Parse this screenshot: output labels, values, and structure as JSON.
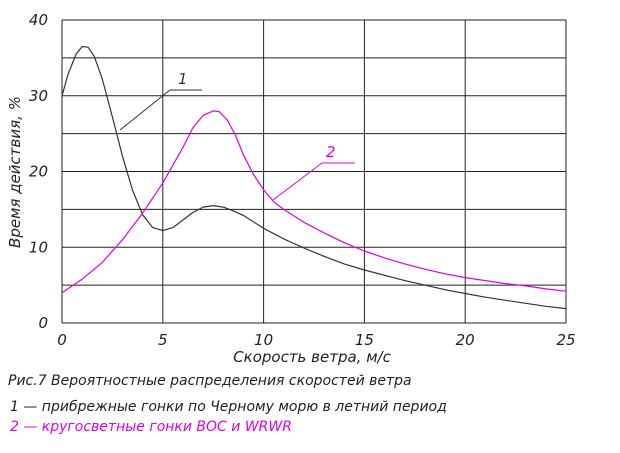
{
  "chart_data": {
    "type": "line",
    "title": "",
    "xlabel": "Скорость ветра, м/с",
    "ylabel": "Время действия, %",
    "xlim": [
      0,
      25
    ],
    "ylim": [
      0,
      40
    ],
    "xticks": [
      0,
      5,
      10,
      15,
      20,
      25
    ],
    "yticks": [
      0,
      10,
      20,
      30,
      40
    ],
    "grid": true,
    "series": [
      {
        "name": "1",
        "color": "#333333",
        "x": [
          0,
          0.3,
          0.7,
          1.0,
          1.3,
          1.6,
          2.0,
          2.5,
          3.0,
          3.5,
          4.0,
          4.5,
          5.0,
          5.5,
          6.0,
          6.5,
          7.0,
          7.5,
          8.0,
          8.5,
          9.0,
          10,
          11,
          12,
          13,
          14,
          15,
          16,
          17,
          18,
          19,
          20,
          21,
          22,
          23,
          24,
          25
        ],
        "y": [
          30,
          32.8,
          35.5,
          36.5,
          36.4,
          35.2,
          32.2,
          27.2,
          22,
          17.5,
          14.3,
          12.6,
          12.2,
          12.6,
          13.6,
          14.6,
          15.3,
          15.5,
          15.3,
          14.8,
          14.2,
          12.5,
          11.1,
          9.9,
          8.8,
          7.8,
          7.0,
          6.3,
          5.6,
          5.0,
          4.4,
          3.9,
          3.4,
          3.0,
          2.6,
          2.2,
          1.9
        ]
      },
      {
        "name": "2",
        "color": "#e000e0",
        "x": [
          0,
          1,
          2,
          3,
          4,
          5,
          6,
          6.5,
          7,
          7.5,
          7.8,
          8.2,
          8.6,
          9,
          9.5,
          10,
          10.5,
          11,
          12,
          13,
          14,
          15,
          16,
          17,
          18,
          19,
          20,
          21,
          22,
          23,
          24,
          25
        ],
        "y": [
          4,
          5.8,
          8,
          11,
          14.5,
          18.5,
          23.2,
          25.8,
          27.4,
          28.0,
          27.9,
          26.8,
          24.8,
          22.2,
          19.6,
          17.6,
          16.0,
          15.0,
          13.3,
          11.9,
          10.6,
          9.5,
          8.6,
          7.8,
          7.1,
          6.5,
          6.0,
          5.6,
          5.2,
          4.9,
          4.5,
          4.2
        ]
      }
    ],
    "annotations": [
      {
        "text": "1",
        "color": "#333333"
      },
      {
        "text": "2",
        "color": "#e000e0"
      }
    ]
  },
  "caption": {
    "title": "Рис.7   Вероятностные распределения скоростей ветра",
    "line1": "1 — прибрежные гонки по Черному морю в летний период",
    "line2": "2 — кругосветные гонки ВОС и WRWR"
  }
}
